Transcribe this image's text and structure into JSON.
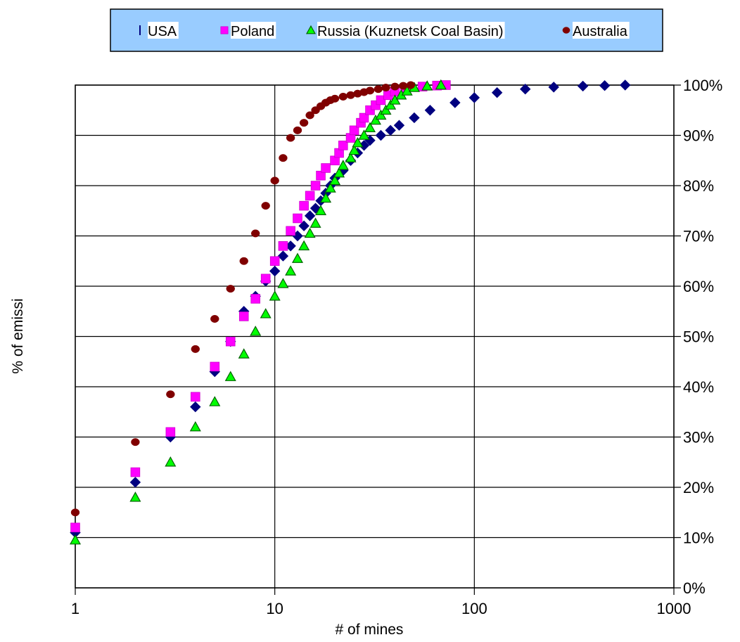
{
  "chart_data": {
    "type": "scatter",
    "title": "",
    "xlabel": "# of mines",
    "ylabel": "% of emissi",
    "x_scale": "log",
    "xlim": [
      1,
      1000
    ],
    "ylim": [
      0,
      100
    ],
    "x_ticks": [
      "1",
      "10",
      "100",
      "1000"
    ],
    "y_ticks": [
      "0%",
      "10%",
      "20%",
      "30%",
      "40%",
      "50%",
      "60%",
      "70%",
      "80%",
      "90%",
      "100%"
    ],
    "y_axis_side": "right",
    "grid": true,
    "legend": "top",
    "series": [
      {
        "name": "USA",
        "color": "#000080",
        "marker": "diamond",
        "points": [
          [
            1,
            11
          ],
          [
            2,
            21
          ],
          [
            3,
            30
          ],
          [
            4,
            36
          ],
          [
            5,
            43
          ],
          [
            6,
            49
          ],
          [
            7,
            55
          ],
          [
            8,
            58
          ],
          [
            9,
            61
          ],
          [
            10,
            63
          ],
          [
            11,
            66
          ],
          [
            12,
            68
          ],
          [
            13,
            70
          ],
          [
            14,
            72
          ],
          [
            15,
            74
          ],
          [
            16,
            75.5
          ],
          [
            17,
            77
          ],
          [
            18,
            78.5
          ],
          [
            19,
            80
          ],
          [
            20,
            81.5
          ],
          [
            22,
            83
          ],
          [
            24,
            85
          ],
          [
            26,
            86.5
          ],
          [
            28,
            88
          ],
          [
            30,
            89
          ],
          [
            34,
            90
          ],
          [
            38,
            91
          ],
          [
            42,
            92
          ],
          [
            50,
            93.5
          ],
          [
            60,
            95
          ],
          [
            80,
            96.5
          ],
          [
            100,
            97.5
          ],
          [
            130,
            98.5
          ],
          [
            180,
            99.2
          ],
          [
            250,
            99.6
          ],
          [
            350,
            99.8
          ],
          [
            450,
            99.9
          ],
          [
            570,
            100
          ]
        ]
      },
      {
        "name": "Poland",
        "color": "#ff00ff",
        "marker": "square",
        "points": [
          [
            1,
            12
          ],
          [
            2,
            23
          ],
          [
            3,
            31
          ],
          [
            4,
            38
          ],
          [
            5,
            44
          ],
          [
            6,
            49
          ],
          [
            7,
            54
          ],
          [
            8,
            57.5
          ],
          [
            9,
            61.5
          ],
          [
            10,
            65
          ],
          [
            11,
            68
          ],
          [
            12,
            71
          ],
          [
            13,
            73.5
          ],
          [
            14,
            76
          ],
          [
            15,
            78
          ],
          [
            16,
            80
          ],
          [
            17,
            82
          ],
          [
            18,
            83.5
          ],
          [
            20,
            85
          ],
          [
            21,
            86.5
          ],
          [
            22,
            88
          ],
          [
            24,
            89.5
          ],
          [
            25,
            91
          ],
          [
            27,
            92.5
          ],
          [
            28,
            93.5
          ],
          [
            30,
            95
          ],
          [
            32,
            96
          ],
          [
            34,
            97
          ],
          [
            37,
            98
          ],
          [
            40,
            98.7
          ],
          [
            45,
            99.3
          ],
          [
            55,
            99.7
          ],
          [
            65,
            99.9
          ],
          [
            72,
            100
          ]
        ]
      },
      {
        "name": "Russia (Kuznetsk Coal Basin)",
        "color": "#00ff00",
        "marker": "triangle",
        "points": [
          [
            1,
            9.5
          ],
          [
            2,
            18
          ],
          [
            3,
            25
          ],
          [
            4,
            32
          ],
          [
            5,
            37
          ],
          [
            6,
            42
          ],
          [
            7,
            46.5
          ],
          [
            8,
            51
          ],
          [
            9,
            54.5
          ],
          [
            10,
            58
          ],
          [
            11,
            60.5
          ],
          [
            12,
            63
          ],
          [
            13,
            65.5
          ],
          [
            14,
            68
          ],
          [
            15,
            70.5
          ],
          [
            16,
            72.5
          ],
          [
            17,
            75
          ],
          [
            18,
            77.5
          ],
          [
            19,
            79.5
          ],
          [
            20,
            81
          ],
          [
            21,
            82.5
          ],
          [
            22,
            84
          ],
          [
            24,
            85.5
          ],
          [
            25,
            87
          ],
          [
            26,
            88.5
          ],
          [
            28,
            90
          ],
          [
            30,
            91.5
          ],
          [
            32,
            93
          ],
          [
            34,
            94
          ],
          [
            36,
            95
          ],
          [
            38,
            96
          ],
          [
            40,
            97
          ],
          [
            43,
            98
          ],
          [
            46,
            98.8
          ],
          [
            50,
            99.5
          ],
          [
            58,
            99.8
          ],
          [
            68,
            100
          ]
        ]
      },
      {
        "name": "Australia",
        "color": "#800000",
        "marker": "circle",
        "points": [
          [
            1,
            15
          ],
          [
            2,
            29
          ],
          [
            3,
            38.5
          ],
          [
            4,
            47.5
          ],
          [
            5,
            53.5
          ],
          [
            6,
            59.5
          ],
          [
            7,
            65
          ],
          [
            8,
            70.5
          ],
          [
            9,
            76
          ],
          [
            10,
            81
          ],
          [
            11,
            85.5
          ],
          [
            12,
            89.5
          ],
          [
            13,
            91
          ],
          [
            14,
            92.5
          ],
          [
            15,
            94
          ],
          [
            16,
            95
          ],
          [
            17,
            95.8
          ],
          [
            18,
            96.5
          ],
          [
            19,
            97
          ],
          [
            20,
            97.3
          ],
          [
            22,
            97.7
          ],
          [
            24,
            98
          ],
          [
            26,
            98.3
          ],
          [
            28,
            98.6
          ],
          [
            30,
            98.9
          ],
          [
            33,
            99.2
          ],
          [
            36,
            99.5
          ],
          [
            40,
            99.7
          ],
          [
            44,
            99.85
          ],
          [
            48,
            100
          ]
        ]
      }
    ]
  }
}
